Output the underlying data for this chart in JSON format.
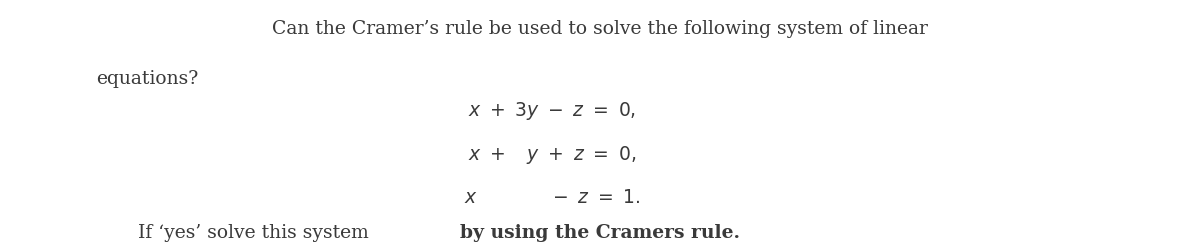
{
  "background_color": "#ffffff",
  "title_line1": "Can the Cramer’s rule be used to solve the following system of linear",
  "title_line2": "equations?",
  "eq1": "$x \\ + \\ 3y \\ - \\ z \\ = \\ 0,$",
  "eq2": "$x \\ + \\ \\ y \\ + \\ z \\ = \\ 0,$",
  "eq3": "$x \\ \\ \\ \\ \\ \\ \\ \\ \\ \\ - \\ z \\ = \\ 1.$",
  "footer_normal": "If ‘yes’ solve this system ",
  "footer_bold": "by using the Cramers rule.",
  "text_color": "#3a3a3a",
  "font_size_title": 13.5,
  "font_size_eq": 13.5,
  "font_size_footer": 13.5
}
